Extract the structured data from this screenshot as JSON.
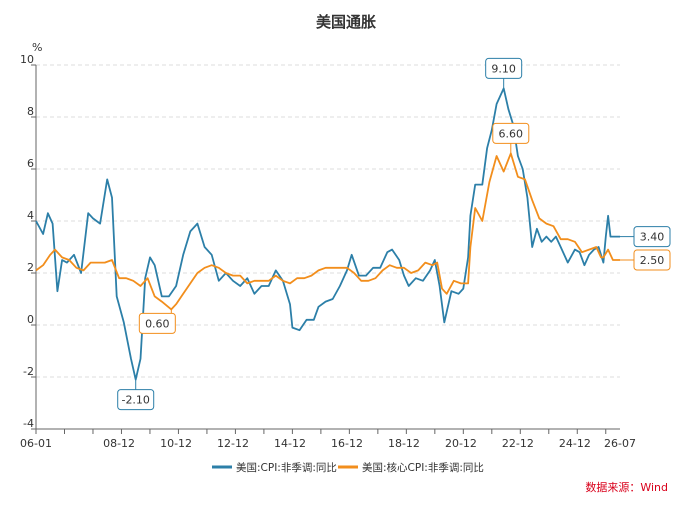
{
  "chart_data": {
    "type": "line",
    "title": "美国通胀",
    "y_unit": "%",
    "xlabel": "",
    "ylabel": "",
    "ylim": [
      -4,
      10
    ],
    "y_ticks": [
      "-4",
      "-2",
      "0",
      "2",
      "4",
      "6",
      "8",
      "10"
    ],
    "x_range": [
      "2006-01",
      "2026-07"
    ],
    "x_ticks": [
      "06-01",
      "08-12",
      "10-12",
      "12-12",
      "14-12",
      "16-12",
      "18-12",
      "20-12",
      "22-12",
      "24-12",
      "26-07"
    ],
    "x_tick_dates": [
      "2006-01",
      "2008-12",
      "2010-12",
      "2012-12",
      "2014-12",
      "2016-12",
      "2018-12",
      "2020-12",
      "2022-12",
      "2024-12",
      "2026-07"
    ],
    "grid": "horizontal-dashed",
    "legend_position": "bottom",
    "source": "数据来源：Wind",
    "series": [
      {
        "name": "美国:CPI:非季调:同比",
        "color": "#2c7fa8",
        "points": [
          [
            "2006-01",
            4.0
          ],
          [
            "2006-04",
            3.5
          ],
          [
            "2006-06",
            4.3
          ],
          [
            "2006-08",
            3.9
          ],
          [
            "2006-10",
            1.3
          ],
          [
            "2006-12",
            2.5
          ],
          [
            "2007-02",
            2.4
          ],
          [
            "2007-05",
            2.7
          ],
          [
            "2007-08",
            2.0
          ],
          [
            "2007-11",
            4.3
          ],
          [
            "2008-01",
            4.1
          ],
          [
            "2008-04",
            3.9
          ],
          [
            "2008-07",
            5.6
          ],
          [
            "2008-09",
            4.9
          ],
          [
            "2008-11",
            1.1
          ],
          [
            "2009-02",
            0.1
          ],
          [
            "2009-05",
            -1.3
          ],
          [
            "2009-07",
            -2.1
          ],
          [
            "2009-09",
            -1.3
          ],
          [
            "2009-11",
            1.8
          ],
          [
            "2010-01",
            2.6
          ],
          [
            "2010-03",
            2.3
          ],
          [
            "2010-06",
            1.1
          ],
          [
            "2010-09",
            1.1
          ],
          [
            "2010-12",
            1.5
          ],
          [
            "2011-03",
            2.7
          ],
          [
            "2011-06",
            3.6
          ],
          [
            "2011-09",
            3.9
          ],
          [
            "2011-12",
            3.0
          ],
          [
            "2012-03",
            2.7
          ],
          [
            "2012-06",
            1.7
          ],
          [
            "2012-09",
            2.0
          ],
          [
            "2012-12",
            1.7
          ],
          [
            "2013-03",
            1.5
          ],
          [
            "2013-06",
            1.8
          ],
          [
            "2013-09",
            1.2
          ],
          [
            "2013-12",
            1.5
          ],
          [
            "2014-03",
            1.5
          ],
          [
            "2014-06",
            2.1
          ],
          [
            "2014-09",
            1.7
          ],
          [
            "2014-12",
            0.8
          ],
          [
            "2015-01",
            -0.1
          ],
          [
            "2015-04",
            -0.2
          ],
          [
            "2015-07",
            0.2
          ],
          [
            "2015-10",
            0.2
          ],
          [
            "2015-12",
            0.7
          ],
          [
            "2016-03",
            0.9
          ],
          [
            "2016-06",
            1.0
          ],
          [
            "2016-09",
            1.5
          ],
          [
            "2016-12",
            2.1
          ],
          [
            "2017-02",
            2.7
          ],
          [
            "2017-05",
            1.9
          ],
          [
            "2017-08",
            1.9
          ],
          [
            "2017-11",
            2.2
          ],
          [
            "2018-02",
            2.2
          ],
          [
            "2018-05",
            2.8
          ],
          [
            "2018-07",
            2.9
          ],
          [
            "2018-10",
            2.5
          ],
          [
            "2018-12",
            1.9
          ],
          [
            "2019-02",
            1.5
          ],
          [
            "2019-05",
            1.8
          ],
          [
            "2019-08",
            1.7
          ],
          [
            "2019-11",
            2.1
          ],
          [
            "2020-01",
            2.5
          ],
          [
            "2020-03",
            1.5
          ],
          [
            "2020-05",
            0.1
          ],
          [
            "2020-08",
            1.3
          ],
          [
            "2020-11",
            1.2
          ],
          [
            "2021-01",
            1.4
          ],
          [
            "2021-03",
            2.6
          ],
          [
            "2021-04",
            4.2
          ],
          [
            "2021-06",
            5.4
          ],
          [
            "2021-09",
            5.4
          ],
          [
            "2021-11",
            6.8
          ],
          [
            "2022-01",
            7.5
          ],
          [
            "2022-03",
            8.5
          ],
          [
            "2022-06",
            9.1
          ],
          [
            "2022-08",
            8.3
          ],
          [
            "2022-10",
            7.7
          ],
          [
            "2022-12",
            6.5
          ],
          [
            "2023-02",
            6.0
          ],
          [
            "2023-04",
            4.9
          ],
          [
            "2023-06",
            3.0
          ],
          [
            "2023-08",
            3.7
          ],
          [
            "2023-10",
            3.2
          ],
          [
            "2023-12",
            3.4
          ],
          [
            "2024-02",
            3.2
          ],
          [
            "2024-04",
            3.4
          ],
          [
            "2024-06",
            3.0
          ],
          [
            "2024-09",
            2.4
          ],
          [
            "2024-12",
            2.9
          ],
          [
            "2025-02",
            2.8
          ],
          [
            "2025-04",
            2.3
          ],
          [
            "2025-06",
            2.7
          ],
          [
            "2025-08",
            2.9
          ],
          [
            "2025-10",
            3.0
          ],
          [
            "2025-11",
            2.7
          ],
          [
            "2025-12",
            2.4
          ],
          [
            "2026-01",
            3.4
          ],
          [
            "2026-02",
            4.2
          ],
          [
            "2026-03",
            3.4
          ],
          [
            "2026-07",
            3.4
          ]
        ]
      },
      {
        "name": "美国:核心CPI:非季调:同比",
        "color": "#f28e1c",
        "points": [
          [
            "2006-01",
            2.1
          ],
          [
            "2006-04",
            2.3
          ],
          [
            "2006-07",
            2.7
          ],
          [
            "2006-09",
            2.9
          ],
          [
            "2006-12",
            2.6
          ],
          [
            "2007-03",
            2.5
          ],
          [
            "2007-06",
            2.2
          ],
          [
            "2007-09",
            2.1
          ],
          [
            "2007-12",
            2.4
          ],
          [
            "2008-03",
            2.4
          ],
          [
            "2008-06",
            2.4
          ],
          [
            "2008-09",
            2.5
          ],
          [
            "2008-12",
            1.8
          ],
          [
            "2009-03",
            1.8
          ],
          [
            "2009-06",
            1.7
          ],
          [
            "2009-09",
            1.5
          ],
          [
            "2009-12",
            1.8
          ],
          [
            "2010-03",
            1.1
          ],
          [
            "2010-06",
            0.9
          ],
          [
            "2010-10",
            0.6
          ],
          [
            "2010-12",
            0.8
          ],
          [
            "2011-03",
            1.2
          ],
          [
            "2011-06",
            1.6
          ],
          [
            "2011-09",
            2.0
          ],
          [
            "2011-12",
            2.2
          ],
          [
            "2012-03",
            2.3
          ],
          [
            "2012-06",
            2.2
          ],
          [
            "2012-09",
            2.0
          ],
          [
            "2012-12",
            1.9
          ],
          [
            "2013-03",
            1.9
          ],
          [
            "2013-06",
            1.6
          ],
          [
            "2013-09",
            1.7
          ],
          [
            "2013-12",
            1.7
          ],
          [
            "2014-03",
            1.7
          ],
          [
            "2014-06",
            1.9
          ],
          [
            "2014-09",
            1.7
          ],
          [
            "2014-12",
            1.6
          ],
          [
            "2015-03",
            1.8
          ],
          [
            "2015-06",
            1.8
          ],
          [
            "2015-09",
            1.9
          ],
          [
            "2015-12",
            2.1
          ],
          [
            "2016-03",
            2.2
          ],
          [
            "2016-06",
            2.2
          ],
          [
            "2016-09",
            2.2
          ],
          [
            "2016-12",
            2.2
          ],
          [
            "2017-03",
            2.0
          ],
          [
            "2017-06",
            1.7
          ],
          [
            "2017-09",
            1.7
          ],
          [
            "2017-12",
            1.8
          ],
          [
            "2018-03",
            2.1
          ],
          [
            "2018-06",
            2.3
          ],
          [
            "2018-09",
            2.2
          ],
          [
            "2018-12",
            2.2
          ],
          [
            "2019-03",
            2.0
          ],
          [
            "2019-06",
            2.1
          ],
          [
            "2019-09",
            2.4
          ],
          [
            "2019-12",
            2.3
          ],
          [
            "2020-02",
            2.4
          ],
          [
            "2020-04",
            1.4
          ],
          [
            "2020-06",
            1.2
          ],
          [
            "2020-09",
            1.7
          ],
          [
            "2020-12",
            1.6
          ],
          [
            "2021-03",
            1.6
          ],
          [
            "2021-04",
            3.0
          ],
          [
            "2021-06",
            4.5
          ],
          [
            "2021-09",
            4.0
          ],
          [
            "2021-12",
            5.5
          ],
          [
            "2022-03",
            6.5
          ],
          [
            "2022-06",
            5.9
          ],
          [
            "2022-09",
            6.6
          ],
          [
            "2022-12",
            5.7
          ],
          [
            "2023-03",
            5.6
          ],
          [
            "2023-06",
            4.8
          ],
          [
            "2023-09",
            4.1
          ],
          [
            "2023-12",
            3.9
          ],
          [
            "2024-03",
            3.8
          ],
          [
            "2024-06",
            3.3
          ],
          [
            "2024-09",
            3.3
          ],
          [
            "2024-12",
            3.2
          ],
          [
            "2025-03",
            2.8
          ],
          [
            "2025-06",
            2.9
          ],
          [
            "2025-09",
            3.0
          ],
          [
            "2025-11",
            2.6
          ],
          [
            "2025-12",
            2.6
          ],
          [
            "2026-02",
            2.9
          ],
          [
            "2026-04",
            2.5
          ],
          [
            "2026-07",
            2.5
          ]
        ]
      }
    ],
    "annotations": [
      {
        "text": "9.10",
        "series": 0,
        "at": "2022-06",
        "value": 9.1,
        "side": "above"
      },
      {
        "text": "-2.10",
        "series": 0,
        "at": "2009-07",
        "value": -2.1,
        "side": "below"
      },
      {
        "text": "6.60",
        "series": 1,
        "at": "2022-09",
        "value": 6.6,
        "side": "above"
      },
      {
        "text": "0.60",
        "series": 1,
        "at": "2010-10",
        "value": 0.6,
        "side": "left"
      },
      {
        "text": "3.40",
        "series": 0,
        "at": "2026-07",
        "value": 3.4,
        "side": "right"
      },
      {
        "text": "2.50",
        "series": 1,
        "at": "2026-07",
        "value": 2.5,
        "side": "right"
      }
    ]
  }
}
